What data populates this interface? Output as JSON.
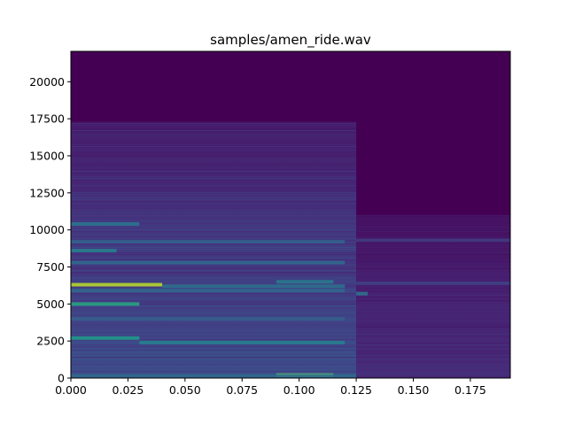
{
  "chart_data": {
    "type": "heatmap",
    "title": "samples/amen_ride.wav",
    "xlabel": "",
    "ylabel": "",
    "xlim": [
      0,
      0.1925
    ],
    "ylim": [
      0,
      22050
    ],
    "x_ticks": [
      0.0,
      0.025,
      0.05,
      0.075,
      0.1,
      0.125,
      0.15,
      0.175
    ],
    "x_tick_labels": [
      "0.000",
      "0.025",
      "0.050",
      "0.075",
      "0.100",
      "0.125",
      "0.150",
      "0.175"
    ],
    "y_ticks": [
      0,
      2500,
      5000,
      7500,
      10000,
      12500,
      15000,
      17500,
      20000
    ],
    "y_tick_labels": [
      "0",
      "2500",
      "5000",
      "7500",
      "10000",
      "12500",
      "15000",
      "17500",
      "20000"
    ],
    "colormap": "viridis",
    "background_color": "#440154",
    "segments": [
      {
        "x_start": 0.0,
        "x_end": 0.125,
        "level": 0.22,
        "max_freq": 17300
      },
      {
        "x_start": 0.125,
        "x_end": 0.1925,
        "level": 0.12,
        "max_freq": 11000
      }
    ],
    "bands": [
      {
        "freq": 6300,
        "x_start": 0.0,
        "x_end": 0.04,
        "level": 0.9
      },
      {
        "freq": 6200,
        "x_start": 0.04,
        "x_end": 0.12,
        "level": 0.38
      },
      {
        "freq": 5900,
        "x_start": 0.0,
        "x_end": 0.12,
        "level": 0.33
      },
      {
        "freq": 5000,
        "x_start": 0.0,
        "x_end": 0.03,
        "level": 0.6
      },
      {
        "freq": 2700,
        "x_start": 0.0,
        "x_end": 0.03,
        "level": 0.55
      },
      {
        "freq": 2400,
        "x_start": 0.03,
        "x_end": 0.12,
        "level": 0.45
      },
      {
        "freq": 7800,
        "x_start": 0.0,
        "x_end": 0.12,
        "level": 0.35
      },
      {
        "freq": 9200,
        "x_start": 0.0,
        "x_end": 0.12,
        "level": 0.32
      },
      {
        "freq": 10400,
        "x_start": 0.0,
        "x_end": 0.03,
        "level": 0.4
      },
      {
        "freq": 8600,
        "x_start": 0.0,
        "x_end": 0.02,
        "level": 0.45
      },
      {
        "freq": 4000,
        "x_start": 0.0,
        "x_end": 0.12,
        "level": 0.3
      },
      {
        "freq": 6500,
        "x_start": 0.09,
        "x_end": 0.115,
        "level": 0.42
      },
      {
        "freq": 200,
        "x_start": 0.09,
        "x_end": 0.115,
        "level": 0.75
      },
      {
        "freq": 150,
        "x_start": 0.0,
        "x_end": 0.125,
        "level": 0.35
      },
      {
        "freq": 5700,
        "x_start": 0.125,
        "x_end": 0.13,
        "level": 0.4
      },
      {
        "freq": 6400,
        "x_start": 0.125,
        "x_end": 0.1925,
        "level": 0.2
      },
      {
        "freq": 9300,
        "x_start": 0.125,
        "x_end": 0.1925,
        "level": 0.18
      }
    ]
  }
}
